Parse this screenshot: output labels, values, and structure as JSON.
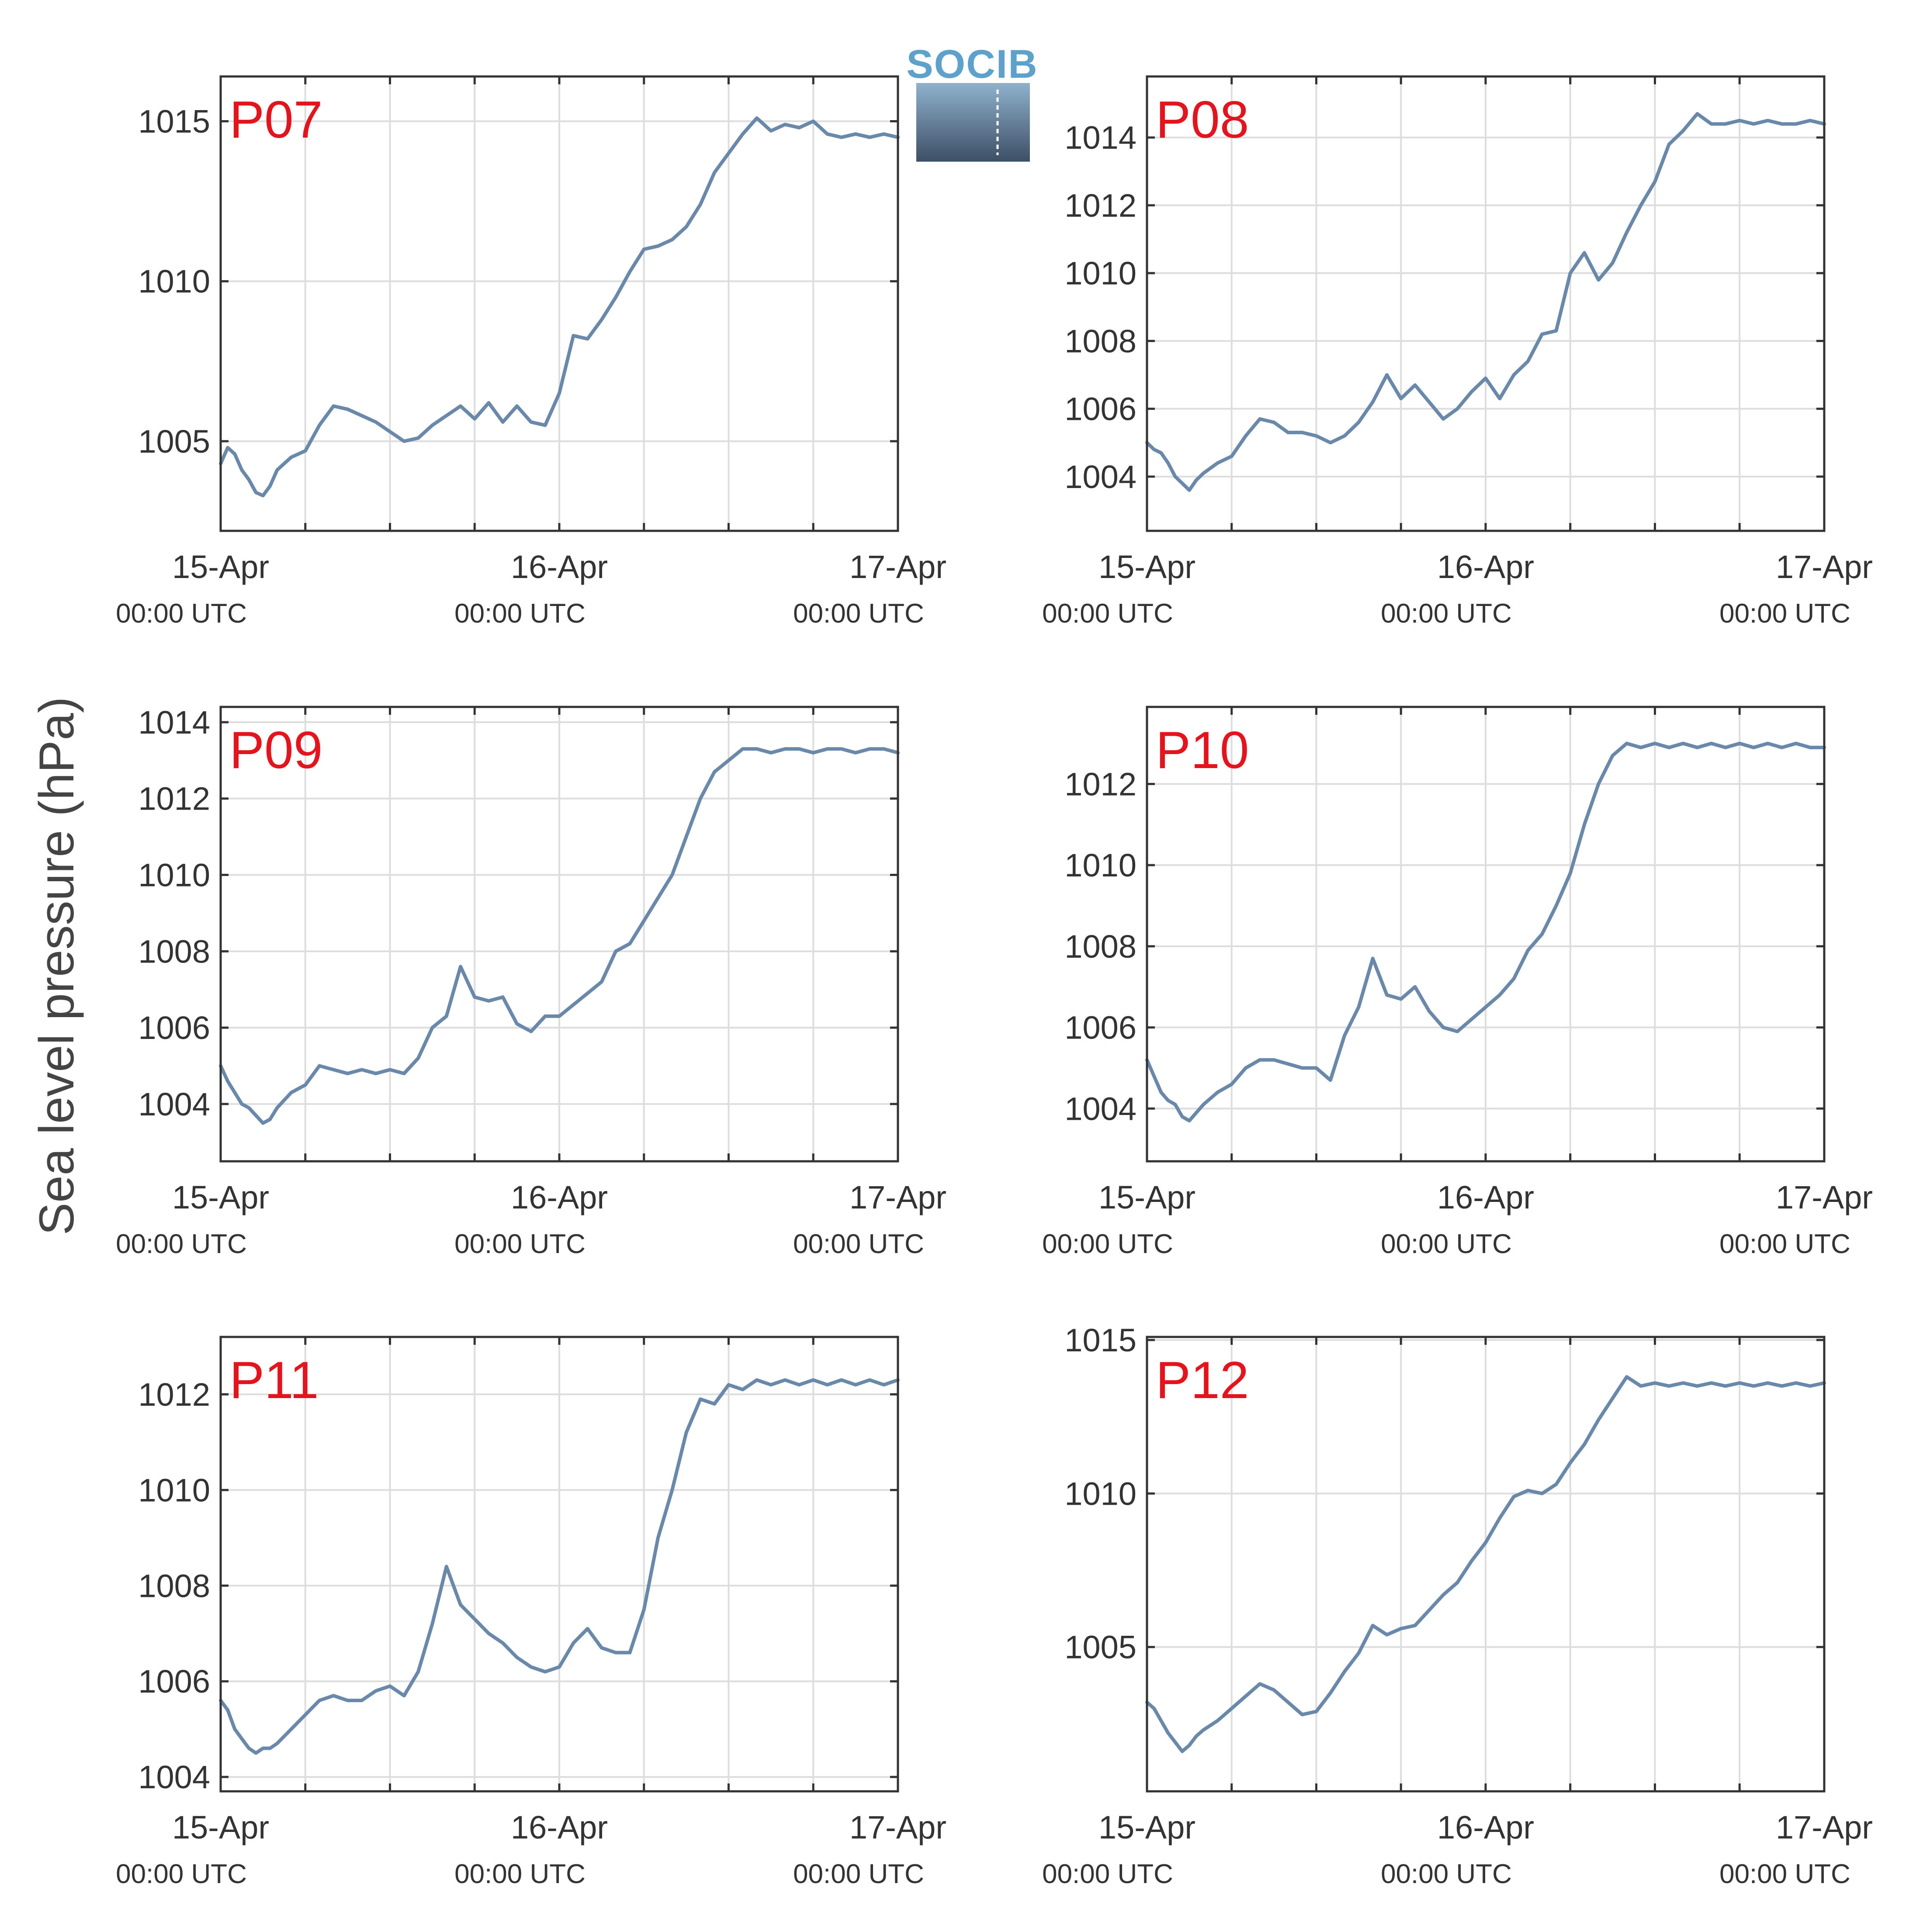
{
  "colors": {
    "series": "#6a89aa",
    "panel_label": "#e4141e",
    "logo_text": "#5ea2cc",
    "logo_top": "#8fb1cc",
    "logo_bottom": "#3d4f66"
  },
  "logo": {
    "text": "SOCIB"
  },
  "ylabel": "Sea level pressure (hPa)",
  "chart_data": [
    {
      "type": "line",
      "label": "P07",
      "ylim": [
        1002.2,
        1016.4
      ],
      "yticks": [
        1005,
        1010,
        1015
      ],
      "xlim": [
        0,
        48
      ],
      "x_ticks": [
        "15-Apr",
        "16-Apr",
        "17-Apr"
      ],
      "x_sublabels": [
        "00:00 UTC",
        "00:00 UTC",
        "00:00 UTC"
      ],
      "series": [
        {
          "x": [
            0,
            0.5,
            1,
            1.5,
            2,
            2.5,
            3,
            3.5,
            4,
            5,
            6,
            7,
            8,
            9,
            10,
            11,
            12,
            13,
            14,
            15,
            16,
            17,
            18,
            19,
            20,
            21,
            22,
            23,
            24,
            25,
            26,
            27,
            28,
            29,
            30,
            31,
            32,
            33,
            34,
            35,
            36,
            37,
            38,
            39,
            40,
            41,
            42,
            43,
            44,
            45,
            46,
            47,
            48
          ],
          "values": [
            1004.3,
            1004.8,
            1004.6,
            1004.1,
            1003.8,
            1003.4,
            1003.3,
            1003.6,
            1004.1,
            1004.5,
            1004.7,
            1005.5,
            1006.1,
            1006.0,
            1005.8,
            1005.6,
            1005.3,
            1005.0,
            1005.1,
            1005.5,
            1005.8,
            1006.1,
            1005.7,
            1006.2,
            1005.6,
            1006.1,
            1005.6,
            1005.5,
            1006.5,
            1008.3,
            1008.2,
            1008.8,
            1009.5,
            1010.3,
            1011.0,
            1011.1,
            1011.3,
            1011.7,
            1012.4,
            1013.4,
            1014.0,
            1014.6,
            1015.1,
            1014.7,
            1014.9,
            1014.8,
            1015.0,
            1014.6,
            1014.5,
            1014.6,
            1014.5,
            1014.6,
            1014.5
          ]
        }
      ]
    },
    {
      "type": "line",
      "label": "P08",
      "ylim": [
        1002.4,
        1015.8
      ],
      "yticks": [
        1004,
        1006,
        1008,
        1010,
        1012,
        1014
      ],
      "xlim": [
        0,
        48
      ],
      "x_ticks": [
        "15-Apr",
        "16-Apr",
        "17-Apr"
      ],
      "x_sublabels": [
        "00:00 UTC",
        "00:00 UTC",
        "00:00 UTC"
      ],
      "series": [
        {
          "x": [
            0,
            0.5,
            1,
            1.5,
            2,
            2.5,
            3,
            3.5,
            4,
            5,
            6,
            7,
            8,
            9,
            10,
            11,
            12,
            13,
            14,
            15,
            16,
            17,
            18,
            19,
            20,
            21,
            22,
            23,
            24,
            25,
            26,
            27,
            28,
            29,
            30,
            31,
            32,
            33,
            34,
            35,
            36,
            37,
            38,
            39,
            40,
            41,
            42,
            43,
            44,
            45,
            46,
            47,
            48
          ],
          "values": [
            1005.0,
            1004.8,
            1004.7,
            1004.4,
            1004.0,
            1003.8,
            1003.6,
            1003.9,
            1004.1,
            1004.4,
            1004.6,
            1005.2,
            1005.7,
            1005.6,
            1005.3,
            1005.3,
            1005.2,
            1005.0,
            1005.2,
            1005.6,
            1006.2,
            1007.0,
            1006.3,
            1006.7,
            1006.2,
            1005.7,
            1006.0,
            1006.5,
            1006.9,
            1006.3,
            1007.0,
            1007.4,
            1008.2,
            1008.3,
            1010.0,
            1010.6,
            1009.8,
            1010.3,
            1011.2,
            1012.0,
            1012.7,
            1013.8,
            1014.2,
            1014.7,
            1014.4,
            1014.4,
            1014.5,
            1014.4,
            1014.5,
            1014.4,
            1014.4,
            1014.5,
            1014.4
          ]
        }
      ]
    },
    {
      "type": "line",
      "label": "P09",
      "ylim": [
        1002.5,
        1014.4
      ],
      "yticks": [
        1004,
        1006,
        1008,
        1010,
        1012,
        1014
      ],
      "xlim": [
        0,
        48
      ],
      "x_ticks": [
        "15-Apr",
        "16-Apr",
        "17-Apr"
      ],
      "x_sublabels": [
        "00:00 UTC",
        "00:00 UTC",
        "00:00 UTC"
      ],
      "series": [
        {
          "x": [
            0,
            0.5,
            1,
            1.5,
            2,
            2.5,
            3,
            3.5,
            4,
            5,
            6,
            7,
            8,
            9,
            10,
            11,
            12,
            13,
            14,
            15,
            16,
            17,
            18,
            19,
            20,
            21,
            22,
            23,
            24,
            25,
            26,
            27,
            28,
            29,
            30,
            31,
            32,
            33,
            34,
            35,
            36,
            37,
            38,
            39,
            40,
            41,
            42,
            43,
            44,
            45,
            46,
            47,
            48
          ],
          "values": [
            1005.0,
            1004.6,
            1004.3,
            1004.0,
            1003.9,
            1003.7,
            1003.5,
            1003.6,
            1003.9,
            1004.3,
            1004.5,
            1005.0,
            1004.9,
            1004.8,
            1004.9,
            1004.8,
            1004.9,
            1004.8,
            1005.2,
            1006.0,
            1006.3,
            1007.6,
            1006.8,
            1006.7,
            1006.8,
            1006.1,
            1005.9,
            1006.3,
            1006.3,
            1006.6,
            1006.9,
            1007.2,
            1008.0,
            1008.2,
            1008.8,
            1009.4,
            1010.0,
            1011.0,
            1012.0,
            1012.7,
            1013.0,
            1013.3,
            1013.3,
            1013.2,
            1013.3,
            1013.3,
            1013.2,
            1013.3,
            1013.3,
            1013.2,
            1013.3,
            1013.3,
            1013.2
          ]
        }
      ]
    },
    {
      "type": "line",
      "label": "P10",
      "ylim": [
        1002.7,
        1013.9
      ],
      "yticks": [
        1004,
        1006,
        1008,
        1010,
        1012
      ],
      "xlim": [
        0,
        48
      ],
      "x_ticks": [
        "15-Apr",
        "16-Apr",
        "17-Apr"
      ],
      "x_sublabels": [
        "00:00 UTC",
        "00:00 UTC",
        "00:00 UTC"
      ],
      "series": [
        {
          "x": [
            0,
            0.5,
            1,
            1.5,
            2,
            2.5,
            3,
            3.5,
            4,
            5,
            6,
            7,
            8,
            9,
            10,
            11,
            12,
            13,
            14,
            15,
            16,
            17,
            18,
            19,
            20,
            21,
            22,
            23,
            24,
            25,
            26,
            27,
            28,
            29,
            30,
            31,
            32,
            33,
            34,
            35,
            36,
            37,
            38,
            39,
            40,
            41,
            42,
            43,
            44,
            45,
            46,
            47,
            48
          ],
          "values": [
            1005.2,
            1004.8,
            1004.4,
            1004.2,
            1004.1,
            1003.8,
            1003.7,
            1003.9,
            1004.1,
            1004.4,
            1004.6,
            1005.0,
            1005.2,
            1005.2,
            1005.1,
            1005.0,
            1005.0,
            1004.7,
            1005.8,
            1006.5,
            1007.7,
            1006.8,
            1006.7,
            1007.0,
            1006.4,
            1006.0,
            1005.9,
            1006.2,
            1006.5,
            1006.8,
            1007.2,
            1007.9,
            1008.3,
            1009.0,
            1009.8,
            1011.0,
            1012.0,
            1012.7,
            1013.0,
            1012.9,
            1013.0,
            1012.9,
            1013.0,
            1012.9,
            1013.0,
            1012.9,
            1013.0,
            1012.9,
            1013.0,
            1012.9,
            1013.0,
            1012.9,
            1012.9
          ]
        }
      ]
    },
    {
      "type": "line",
      "label": "P11",
      "ylim": [
        1003.7,
        1013.2
      ],
      "yticks": [
        1004,
        1006,
        1008,
        1010,
        1012
      ],
      "xlim": [
        0,
        48
      ],
      "x_ticks": [
        "15-Apr",
        "16-Apr",
        "17-Apr"
      ],
      "x_sublabels": [
        "00:00 UTC",
        "00:00 UTC",
        "00:00 UTC"
      ],
      "series": [
        {
          "x": [
            0,
            0.5,
            1,
            1.5,
            2,
            2.5,
            3,
            3.5,
            4,
            5,
            6,
            7,
            8,
            9,
            10,
            11,
            12,
            13,
            14,
            15,
            16,
            17,
            18,
            19,
            20,
            21,
            22,
            23,
            24,
            25,
            26,
            27,
            28,
            29,
            30,
            31,
            32,
            33,
            34,
            35,
            36,
            37,
            38,
            39,
            40,
            41,
            42,
            43,
            44,
            45,
            46,
            47,
            48
          ],
          "values": [
            1005.6,
            1005.4,
            1005.0,
            1004.8,
            1004.6,
            1004.5,
            1004.6,
            1004.6,
            1004.7,
            1005.0,
            1005.3,
            1005.6,
            1005.7,
            1005.6,
            1005.6,
            1005.8,
            1005.9,
            1005.7,
            1006.2,
            1007.2,
            1008.4,
            1007.6,
            1007.3,
            1007.0,
            1006.8,
            1006.5,
            1006.3,
            1006.2,
            1006.3,
            1006.8,
            1007.1,
            1006.7,
            1006.6,
            1006.6,
            1007.5,
            1009.0,
            1010.0,
            1011.2,
            1011.9,
            1011.8,
            1012.2,
            1012.1,
            1012.3,
            1012.2,
            1012.3,
            1012.2,
            1012.3,
            1012.2,
            1012.3,
            1012.2,
            1012.3,
            1012.2,
            1012.3
          ]
        }
      ]
    },
    {
      "type": "line",
      "label": "P12",
      "ylim": [
        1000.3,
        1015.1
      ],
      "yticks": [
        1005,
        1010,
        1015
      ],
      "xlim": [
        0,
        48
      ],
      "x_ticks": [
        "15-Apr",
        "16-Apr",
        "17-Apr"
      ],
      "x_sublabels": [
        "00:00 UTC",
        "00:00 UTC",
        "00:00 UTC"
      ],
      "series": [
        {
          "x": [
            0,
            0.5,
            1,
            1.5,
            2,
            2.5,
            3,
            3.5,
            4,
            5,
            6,
            7,
            8,
            9,
            10,
            11,
            12,
            13,
            14,
            15,
            16,
            17,
            18,
            19,
            20,
            21,
            22,
            23,
            24,
            25,
            26,
            27,
            28,
            29,
            30,
            31,
            32,
            33,
            34,
            35,
            36,
            37,
            38,
            39,
            40,
            41,
            42,
            43,
            44,
            45,
            46,
            47,
            48
          ],
          "values": [
            1003.2,
            1003.0,
            1002.6,
            1002.2,
            1001.9,
            1001.6,
            1001.8,
            1002.1,
            1002.3,
            1002.6,
            1003.0,
            1003.4,
            1003.8,
            1003.6,
            1003.2,
            1002.8,
            1002.9,
            1003.5,
            1004.2,
            1004.8,
            1005.7,
            1005.4,
            1005.6,
            1005.7,
            1006.2,
            1006.7,
            1007.1,
            1007.8,
            1008.4,
            1009.2,
            1009.9,
            1010.1,
            1010.0,
            1010.3,
            1011.0,
            1011.6,
            1012.4,
            1013.1,
            1013.8,
            1013.5,
            1013.6,
            1013.5,
            1013.6,
            1013.5,
            1013.6,
            1013.5,
            1013.6,
            1013.5,
            1013.6,
            1013.5,
            1013.6,
            1013.5,
            1013.6
          ]
        }
      ]
    }
  ]
}
